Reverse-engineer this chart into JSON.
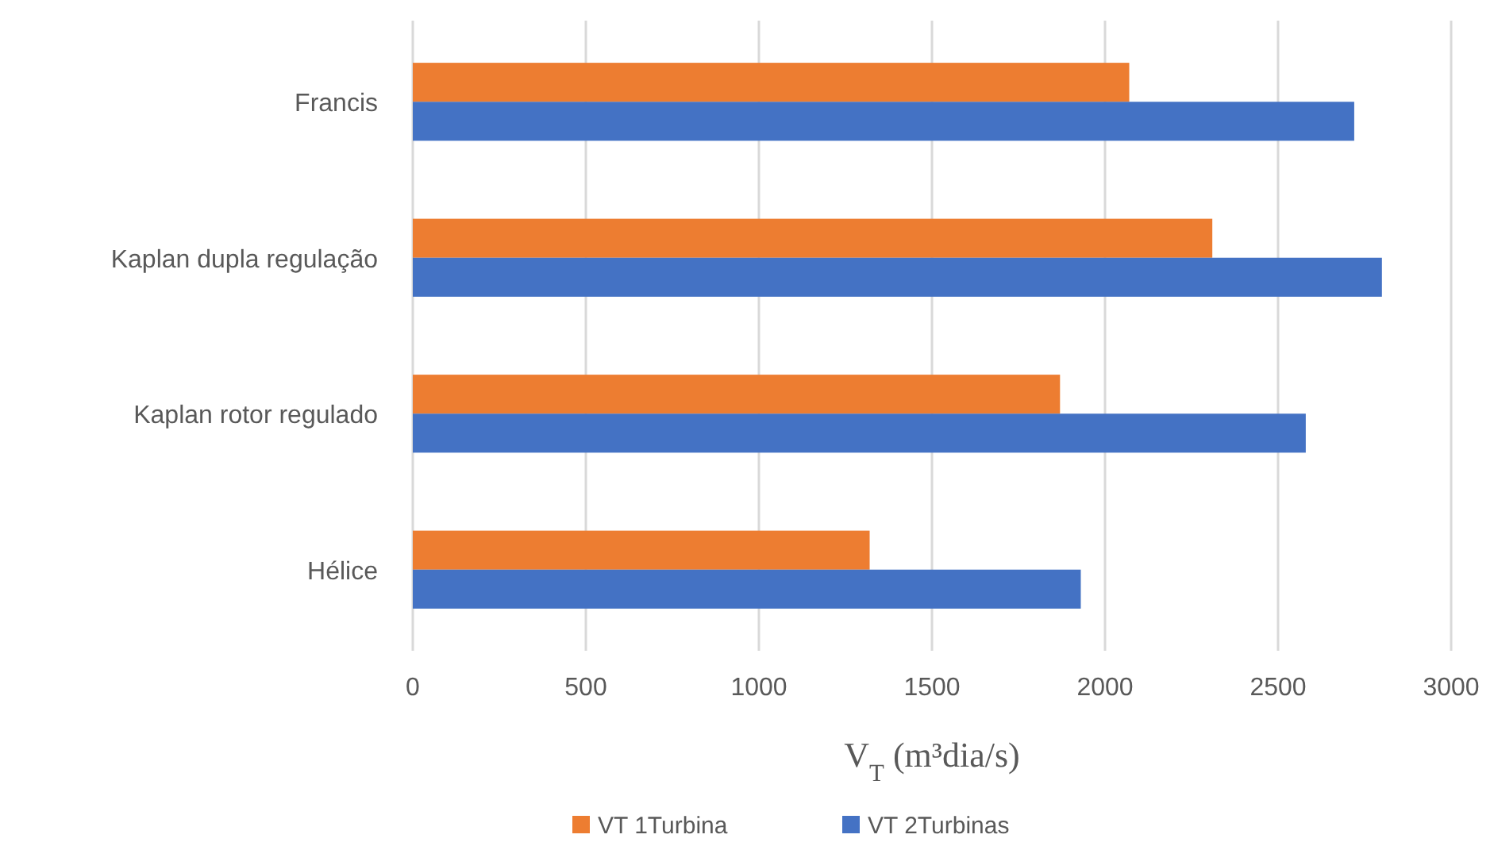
{
  "chart_data": {
    "type": "bar",
    "orientation": "horizontal",
    "xlabel": "V$_{T}$ (m³dia/s)",
    "categories": [
      "Francis",
      "Kaplan dupla regulação",
      "Kaplan rotor regulado",
      "Hélice"
    ],
    "series": [
      {
        "name": "VT 1Turbina",
        "color": "#ed7d31",
        "values": [
          2070,
          2310,
          1870,
          1320
        ]
      },
      {
        "name": "VT 2Turbinas",
        "color": "#4472c4",
        "values": [
          2720,
          2800,
          2580,
          1930
        ]
      }
    ],
    "xlim": [
      0,
      3000
    ],
    "xticks": [
      0,
      500,
      1000,
      1500,
      2000,
      2500,
      3000
    ],
    "grid": "x",
    "legend": "bottom"
  }
}
